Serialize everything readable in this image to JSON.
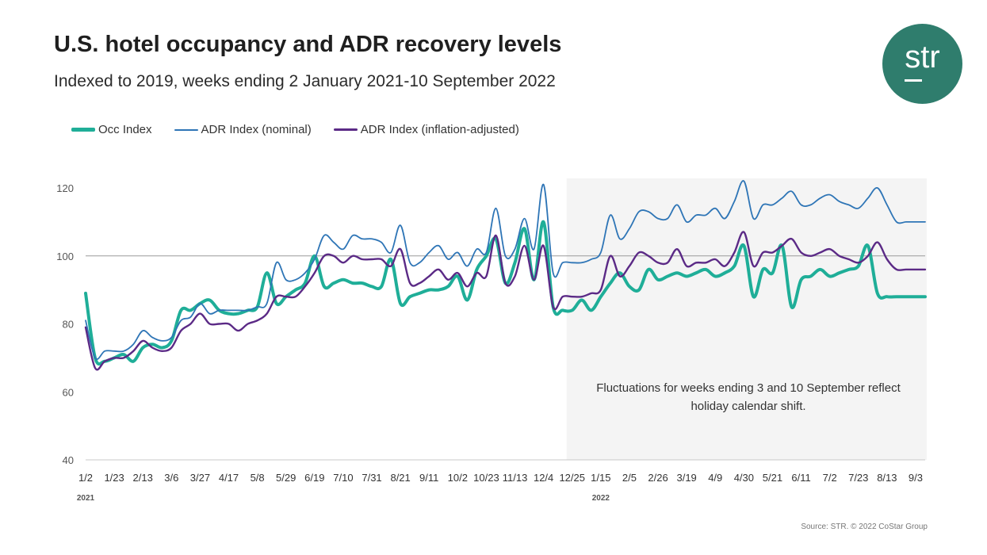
{
  "header": {
    "title": "U.S. hotel occupancy and ADR recovery levels",
    "subtitle": "Indexed to 2019, weeks ending 2 January 2021-10 September 2022"
  },
  "logo": {
    "text": "str",
    "color": "#2f7d6d"
  },
  "footer": {
    "source": "Source: STR. © 2022 CoStar Group"
  },
  "chart_data": {
    "type": "line",
    "title": "U.S. hotel occupancy and ADR recovery levels",
    "subtitle": "Indexed to 2019, weeks ending 2 January 2021-10 September 2022",
    "ylim": [
      40,
      120
    ],
    "yticks": [
      40,
      60,
      80,
      100,
      120
    ],
    "reference_line": 100,
    "grid": false,
    "legend_position": "top-left",
    "x": [
      "2021-01-02",
      "2021-01-09",
      "2021-01-16",
      "2021-01-23",
      "2021-01-30",
      "2021-02-06",
      "2021-02-13",
      "2021-02-20",
      "2021-02-27",
      "2021-03-06",
      "2021-03-13",
      "2021-03-20",
      "2021-03-27",
      "2021-04-03",
      "2021-04-10",
      "2021-04-17",
      "2021-04-24",
      "2021-05-01",
      "2021-05-08",
      "2021-05-15",
      "2021-05-22",
      "2021-05-29",
      "2021-06-05",
      "2021-06-12",
      "2021-06-19",
      "2021-06-26",
      "2021-07-03",
      "2021-07-10",
      "2021-07-17",
      "2021-07-24",
      "2021-07-31",
      "2021-08-07",
      "2021-08-14",
      "2021-08-21",
      "2021-08-28",
      "2021-09-04",
      "2021-09-11",
      "2021-09-18",
      "2021-09-25",
      "2021-10-02",
      "2021-10-09",
      "2021-10-16",
      "2021-10-23",
      "2021-10-30",
      "2021-11-06",
      "2021-11-13",
      "2021-11-20",
      "2021-11-27",
      "2021-12-04",
      "2021-12-11",
      "2021-12-18",
      "2021-12-25",
      "2022-01-01",
      "2022-01-08",
      "2022-01-15",
      "2022-01-22",
      "2022-01-29",
      "2022-02-05",
      "2022-02-12",
      "2022-02-19",
      "2022-02-26",
      "2022-03-05",
      "2022-03-12",
      "2022-03-19",
      "2022-03-26",
      "2022-04-02",
      "2022-04-09",
      "2022-04-16",
      "2022-04-23",
      "2022-04-30",
      "2022-05-07",
      "2022-05-14",
      "2022-05-21",
      "2022-05-28",
      "2022-06-04",
      "2022-06-11",
      "2022-06-18",
      "2022-06-25",
      "2022-07-02",
      "2022-07-09",
      "2022-07-16",
      "2022-07-23",
      "2022-07-30",
      "2022-08-06",
      "2022-08-13",
      "2022-08-20",
      "2022-08-27",
      "2022-09-03",
      "2022-09-10"
    ],
    "x_tick_labels": [
      {
        "date": "2021-01-02",
        "label": "1/2"
      },
      {
        "date": "2021-01-23",
        "label": "1/23"
      },
      {
        "date": "2021-02-13",
        "label": "2/13"
      },
      {
        "date": "2021-03-06",
        "label": "3/6"
      },
      {
        "date": "2021-03-27",
        "label": "3/27"
      },
      {
        "date": "2021-04-17",
        "label": "4/17"
      },
      {
        "date": "2021-05-08",
        "label": "5/8"
      },
      {
        "date": "2021-05-29",
        "label": "5/29"
      },
      {
        "date": "2021-06-19",
        "label": "6/19"
      },
      {
        "date": "2021-07-10",
        "label": "7/10"
      },
      {
        "date": "2021-07-31",
        "label": "7/31"
      },
      {
        "date": "2021-08-21",
        "label": "8/21"
      },
      {
        "date": "2021-09-11",
        "label": "9/11"
      },
      {
        "date": "2021-10-02",
        "label": "10/2"
      },
      {
        "date": "2021-10-23",
        "label": "10/23"
      },
      {
        "date": "2021-11-13",
        "label": "11/13"
      },
      {
        "date": "2021-12-04",
        "label": "12/4"
      },
      {
        "date": "2021-12-25",
        "label": "12/25"
      },
      {
        "date": "2022-01-15",
        "label": "1/15"
      },
      {
        "date": "2022-02-05",
        "label": "2/5"
      },
      {
        "date": "2022-02-26",
        "label": "2/26"
      },
      {
        "date": "2022-03-19",
        "label": "3/19"
      },
      {
        "date": "2022-04-09",
        "label": "4/9"
      },
      {
        "date": "2022-04-30",
        "label": "4/30"
      },
      {
        "date": "2022-05-21",
        "label": "5/21"
      },
      {
        "date": "2022-06-11",
        "label": "6/11"
      },
      {
        "date": "2022-07-02",
        "label": "7/2"
      },
      {
        "date": "2022-07-23",
        "label": "7/23"
      },
      {
        "date": "2022-08-13",
        "label": "8/13"
      },
      {
        "date": "2022-09-03",
        "label": "9/3"
      }
    ],
    "year_labels": [
      {
        "date": "2021-01-02",
        "label": "2021"
      },
      {
        "date": "2022-01-15",
        "label": "2022"
      }
    ],
    "shaded_region": {
      "start": "2021-12-25",
      "end": "2022-09-10",
      "color": "#f4f4f4"
    },
    "annotation": {
      "line1": "Fluctuations for weeks ending 3 and 10 September reflect",
      "line2": "holiday calendar shift."
    },
    "series": [
      {
        "name": "Occ Index",
        "color": "#1fae98",
        "values": [
          89,
          70,
          69,
          70,
          71,
          69,
          73,
          74,
          73,
          75,
          84,
          84,
          86,
          87,
          84,
          83,
          83,
          84,
          85,
          95,
          86,
          88,
          90,
          92,
          100,
          91,
          92,
          93,
          92,
          92,
          91,
          91,
          99,
          86,
          88,
          89,
          90,
          90,
          91,
          94,
          87,
          96,
          100,
          105,
          92,
          98,
          108,
          93,
          110,
          85,
          84,
          84,
          87,
          84,
          88,
          92,
          95,
          91,
          90,
          96,
          93,
          94,
          95,
          94,
          95,
          96,
          94,
          95,
          97,
          103,
          88,
          96,
          95,
          103,
          85,
          93,
          94,
          96,
          94,
          95,
          96,
          97,
          103,
          89,
          88,
          88,
          88,
          88,
          88
        ],
        "values_note": ""
      },
      {
        "name": "ADR Index (nominal)",
        "color": "#2e75b6",
        "values": [
          81,
          70,
          72,
          72,
          72,
          74,
          78,
          76,
          75,
          76,
          81,
          82,
          86,
          83,
          84,
          84,
          84,
          84,
          85,
          86,
          98,
          93,
          93,
          95,
          99,
          106,
          104,
          102,
          106,
          105,
          105,
          104,
          101,
          109,
          98,
          98,
          101,
          103,
          99,
          101,
          97,
          102,
          101,
          114,
          100,
          102,
          111,
          102,
          121,
          95,
          98,
          98,
          98,
          99,
          101,
          112,
          105,
          108,
          113,
          113,
          111,
          111,
          115,
          110,
          112,
          112,
          114,
          111,
          116,
          122,
          111,
          115,
          115,
          117,
          119,
          115,
          115,
          117,
          118,
          116,
          115,
          114,
          117,
          120,
          115,
          110,
          110,
          110,
          110
        ],
        "values_note": ""
      },
      {
        "name": "ADR Index (inflation-adjusted)",
        "color": "#5b2a86",
        "values": [
          79,
          67,
          69,
          70,
          70,
          72,
          75,
          73,
          72,
          73,
          78,
          80,
          83,
          80,
          80,
          80,
          78,
          80,
          81,
          83,
          88,
          88,
          88,
          91,
          95,
          100,
          100,
          98,
          100,
          99,
          99,
          99,
          97,
          102,
          92,
          92,
          94,
          96,
          93,
          95,
          91,
          95,
          94,
          106,
          92,
          94,
          103,
          93,
          103,
          85,
          88,
          88,
          88,
          89,
          90,
          100,
          94,
          97,
          101,
          100,
          98,
          98,
          102,
          97,
          98,
          98,
          99,
          97,
          101,
          107,
          97,
          101,
          101,
          103,
          105,
          101,
          100,
          101,
          102,
          100,
          99,
          98,
          100,
          104,
          99,
          96,
          96,
          96,
          96
        ],
        "values_note": ""
      }
    ]
  }
}
